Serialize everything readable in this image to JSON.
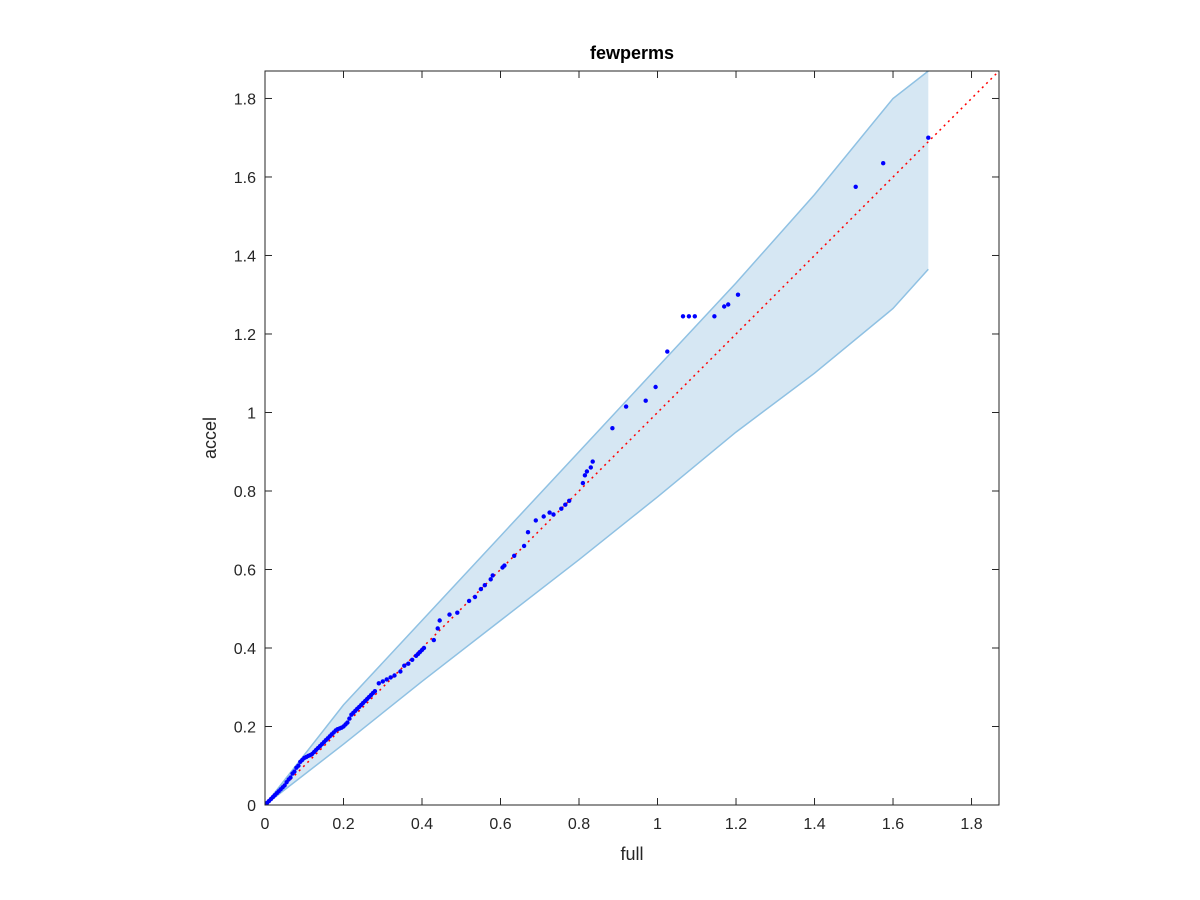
{
  "chart_data": {
    "type": "scatter",
    "title": "fewperms",
    "xlabel": "full",
    "ylabel": "accel",
    "xlim": [
      0,
      1.87
    ],
    "ylim": [
      0,
      1.87
    ],
    "xticks": [
      "0",
      "0.2",
      "0.4",
      "0.6",
      "0.8",
      "1",
      "1.2",
      "1.4",
      "1.6",
      "1.8"
    ],
    "yticks": [
      "0",
      "0.2",
      "0.4",
      "0.6",
      "0.8",
      "1",
      "1.2",
      "1.4",
      "1.6",
      "1.8"
    ],
    "grid": false,
    "box": true,
    "colors": {
      "points": "#0000ff",
      "reference_line": "#ff0000",
      "band_fill": "#d6e7f3",
      "band_edge": "#8fc1e3",
      "axes": "#262626"
    },
    "reference_line": {
      "style": "dotted",
      "x": [
        0,
        1.87
      ],
      "y": [
        0,
        1.87
      ]
    },
    "confidence_band": {
      "x": [
        0,
        0.2,
        0.4,
        0.6,
        0.8,
        1.0,
        1.2,
        1.4,
        1.6,
        1.69
      ],
      "upper": [
        0,
        0.255,
        0.47,
        0.685,
        0.9,
        1.115,
        1.33,
        1.555,
        1.8,
        1.87
      ],
      "lower": [
        0,
        0.155,
        0.315,
        0.47,
        0.625,
        0.785,
        0.95,
        1.1,
        1.265,
        1.365
      ]
    },
    "series": [
      {
        "x": [
          0.005,
          0.01,
          0.015,
          0.02,
          0.025,
          0.03,
          0.035,
          0.04,
          0.045,
          0.05,
          0.055,
          0.06,
          0.065,
          0.07,
          0.075,
          0.08,
          0.085,
          0.09,
          0.095,
          0.1,
          0.105,
          0.11,
          0.115,
          0.12,
          0.125,
          0.13,
          0.135,
          0.14,
          0.145,
          0.15,
          0.155,
          0.16,
          0.165,
          0.17,
          0.175,
          0.18,
          0.185,
          0.19,
          0.195,
          0.2,
          0.205,
          0.21,
          0.215,
          0.22,
          0.225,
          0.23,
          0.235,
          0.24,
          0.245,
          0.25,
          0.255,
          0.26,
          0.265,
          0.27,
          0.275,
          0.28,
          0.29,
          0.3,
          0.31,
          0.32,
          0.33,
          0.345,
          0.355,
          0.365,
          0.375,
          0.385,
          0.39,
          0.395,
          0.4,
          0.405,
          0.43,
          0.44,
          0.445,
          0.47,
          0.49,
          0.52,
          0.535,
          0.55,
          0.56,
          0.575,
          0.58,
          0.605,
          0.61,
          0.635,
          0.66,
          0.67,
          0.69,
          0.71,
          0.725,
          0.735,
          0.755,
          0.765,
          0.775,
          0.81,
          0.815,
          0.82,
          0.83,
          0.835,
          0.885,
          0.92,
          0.97,
          0.995,
          1.025,
          1.065,
          1.08,
          1.095,
          1.145,
          1.17,
          1.18,
          1.205,
          1.505,
          1.575,
          1.69
        ],
        "y": [
          0.005,
          0.01,
          0.015,
          0.02,
          0.025,
          0.03,
          0.035,
          0.04,
          0.045,
          0.05,
          0.058,
          0.065,
          0.07,
          0.08,
          0.085,
          0.095,
          0.1,
          0.11,
          0.115,
          0.12,
          0.122,
          0.125,
          0.127,
          0.13,
          0.135,
          0.14,
          0.145,
          0.15,
          0.155,
          0.16,
          0.165,
          0.17,
          0.175,
          0.18,
          0.185,
          0.19,
          0.193,
          0.195,
          0.197,
          0.2,
          0.205,
          0.21,
          0.22,
          0.23,
          0.235,
          0.24,
          0.245,
          0.25,
          0.255,
          0.26,
          0.265,
          0.27,
          0.275,
          0.28,
          0.285,
          0.29,
          0.31,
          0.315,
          0.32,
          0.325,
          0.33,
          0.34,
          0.355,
          0.36,
          0.37,
          0.38,
          0.385,
          0.39,
          0.395,
          0.4,
          0.42,
          0.45,
          0.47,
          0.485,
          0.49,
          0.52,
          0.53,
          0.55,
          0.56,
          0.575,
          0.585,
          0.605,
          0.61,
          0.635,
          0.66,
          0.695,
          0.725,
          0.735,
          0.745,
          0.74,
          0.755,
          0.765,
          0.775,
          0.82,
          0.84,
          0.85,
          0.86,
          0.875,
          0.96,
          1.015,
          1.03,
          1.065,
          1.155,
          1.245,
          1.245,
          1.245,
          1.245,
          1.27,
          1.275,
          1.3,
          1.575,
          1.635,
          1.7
        ]
      }
    ]
  }
}
